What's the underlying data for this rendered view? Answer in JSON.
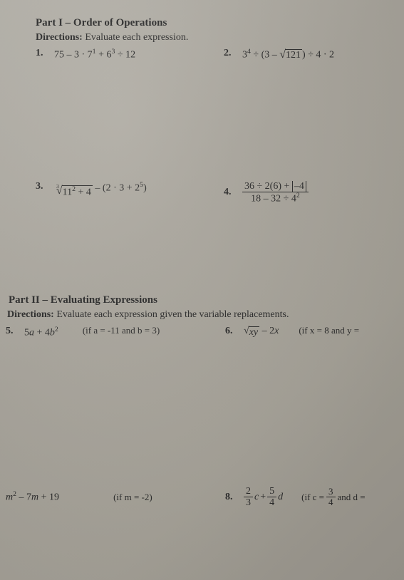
{
  "part1": {
    "title": "Part I – Order of Operations",
    "directions_label": "Directions:",
    "directions_text": "Evaluate each expression."
  },
  "p1": {
    "num": "1.",
    "expr": "75 – 3 · 7",
    "sup1": "1",
    "mid": " + 6",
    "sup2": "3",
    "tail": " ÷ 12"
  },
  "p2": {
    "num": "2.",
    "lead": "3",
    "sup1": "4",
    "mid": " ÷ (3 – ",
    "sqrt_body": "121",
    "tail": ") ÷ 4 · 2"
  },
  "p3": {
    "num": "3.",
    "idx": "3",
    "sqrt_body_a": "11",
    "sqrt_sup": "2",
    "sqrt_body_b": " + 4",
    "after": " – (2 · 3 + 2",
    "sup2": "5",
    "tail": ")"
  },
  "p4": {
    "num": "4.",
    "fn_a": "36 ÷ 2(6) + ",
    "fn_abs": "–4",
    "fd_a": "18 – 32 ÷ 4",
    "fd_sup": "2"
  },
  "part2": {
    "title": "Part II – Evaluating Expressions",
    "directions_label": "Directions:",
    "directions_text": "Evaluate each expression given the variable replacements."
  },
  "p5": {
    "num": "5.",
    "expr_a": "5",
    "var_a": "a",
    "expr_b": " + 4",
    "var_b": "b",
    "sup": "2",
    "cond": "(if a = -11 and b = 3)"
  },
  "p6": {
    "num": "6.",
    "sqrt_body": "xy",
    "tail": " – 2",
    "var_x": "x",
    "cond": "(if x = 8 and y ="
  },
  "p7": {
    "num_blank": "",
    "var_m": "m",
    "sup": "2",
    "mid": " – 7",
    "var_m2": "m",
    "tail": " + 19",
    "cond": "(if m = -2)"
  },
  "p8": {
    "num": "8.",
    "f1n": "2",
    "f1d": "3",
    "var_c": "c",
    "plus": " + ",
    "f2n": "5",
    "f2d": "4",
    "var_d": "d",
    "cond_a": "(if c = ",
    "f3n": "3",
    "f3d": "4",
    "cond_b": " and d ="
  }
}
